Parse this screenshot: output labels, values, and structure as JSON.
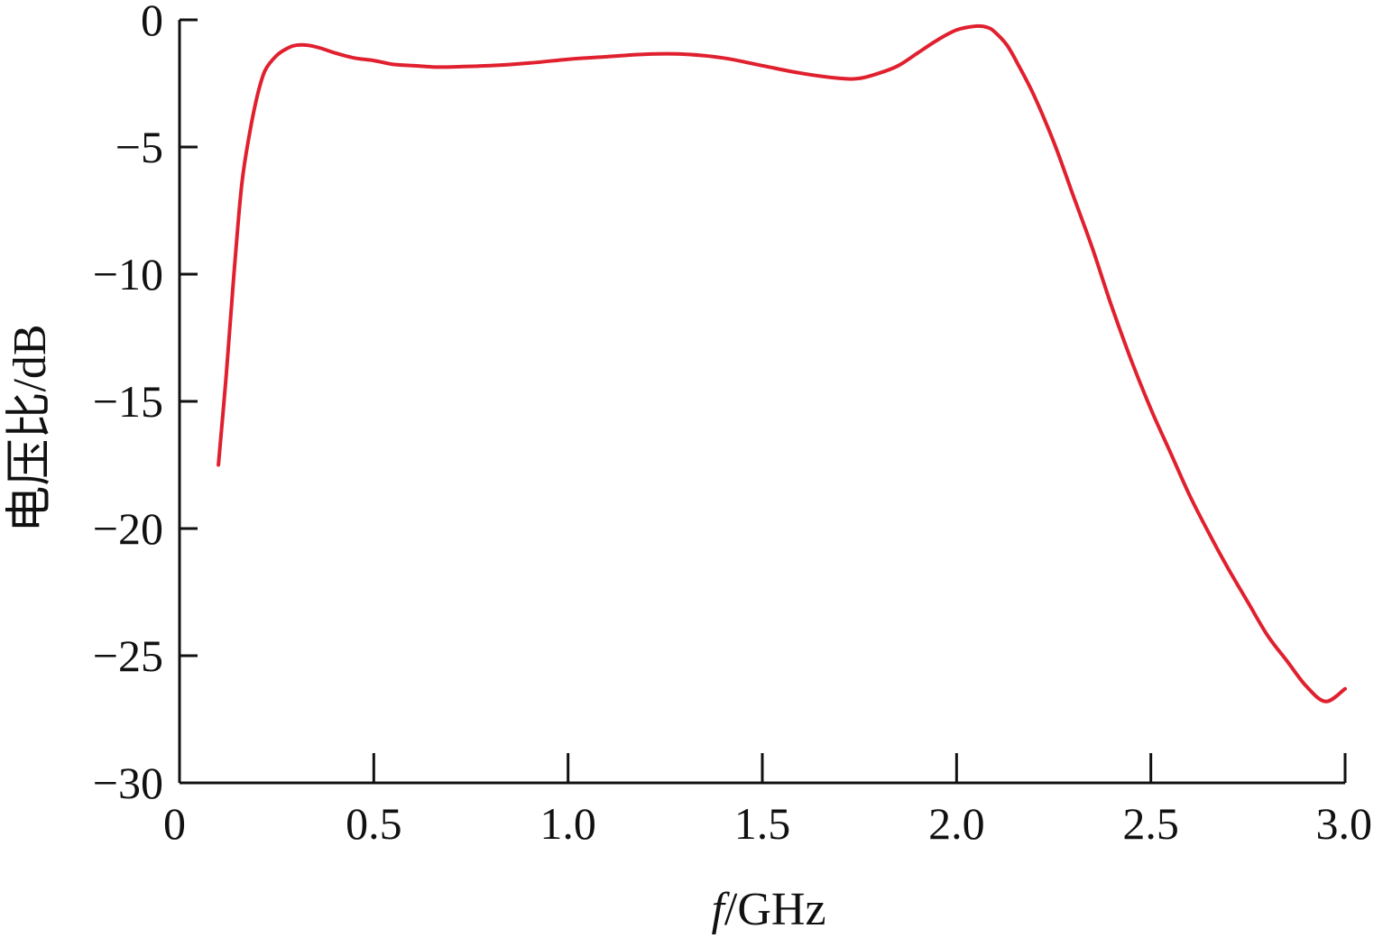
{
  "chart_data": {
    "type": "line",
    "title": "",
    "xlabel_italic": "f",
    "xlabel_rest": "/GHz",
    "ylabel": "电压比/dB",
    "xlim": [
      0,
      3.0
    ],
    "ylim": [
      -30,
      0
    ],
    "x_ticks": [
      0,
      0.5,
      1.0,
      1.5,
      2.0,
      2.5,
      3.0
    ],
    "x_tick_labels": [
      "0",
      "0.5",
      "1.0",
      "1.5",
      "2.0",
      "2.5",
      "3.0"
    ],
    "y_ticks": [
      0,
      -5,
      -10,
      -15,
      -20,
      -25,
      -30
    ],
    "y_tick_labels": [
      "0",
      "−5",
      "−10",
      "−15",
      "−20",
      "−25",
      "−30"
    ],
    "grid": false,
    "legend": "none",
    "series": [
      {
        "color": "#e0202e",
        "x": [
          0.1,
          0.12,
          0.14,
          0.16,
          0.18,
          0.2,
          0.22,
          0.25,
          0.28,
          0.3,
          0.33,
          0.36,
          0.4,
          0.45,
          0.5,
          0.55,
          0.6,
          0.65,
          0.7,
          0.8,
          0.9,
          1.0,
          1.1,
          1.2,
          1.3,
          1.4,
          1.5,
          1.6,
          1.7,
          1.75,
          1.8,
          1.85,
          1.9,
          1.95,
          2.0,
          2.05,
          2.08,
          2.1,
          2.13,
          2.16,
          2.2,
          2.25,
          2.3,
          2.35,
          2.4,
          2.45,
          2.5,
          2.55,
          2.6,
          2.65,
          2.7,
          2.75,
          2.8,
          2.85,
          2.9,
          2.95,
          3.0
        ],
        "y": [
          -17.5,
          -14.0,
          -10.0,
          -6.5,
          -4.5,
          -3.0,
          -2.0,
          -1.4,
          -1.1,
          -1.0,
          -1.0,
          -1.1,
          -1.3,
          -1.5,
          -1.6,
          -1.75,
          -1.8,
          -1.85,
          -1.85,
          -1.8,
          -1.7,
          -1.55,
          -1.45,
          -1.35,
          -1.35,
          -1.5,
          -1.8,
          -2.1,
          -2.3,
          -2.3,
          -2.1,
          -1.8,
          -1.3,
          -0.8,
          -0.4,
          -0.25,
          -0.3,
          -0.5,
          -1.0,
          -1.8,
          -3.0,
          -4.8,
          -6.9,
          -9.0,
          -11.3,
          -13.4,
          -15.3,
          -17.0,
          -18.7,
          -20.2,
          -21.6,
          -22.9,
          -24.2,
          -25.2,
          -26.2,
          -26.8,
          -26.3
        ]
      }
    ]
  }
}
